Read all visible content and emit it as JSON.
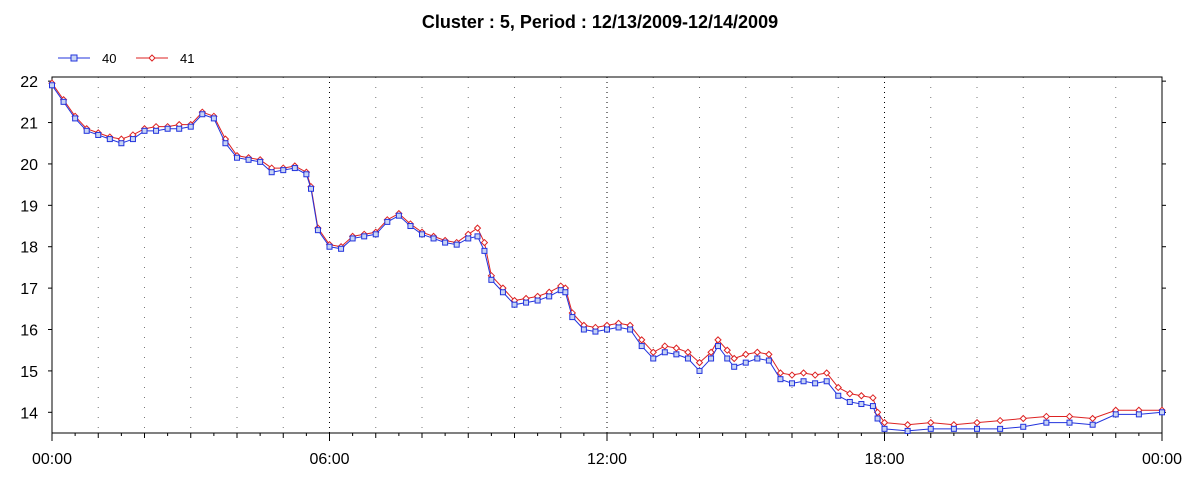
{
  "chart_data": {
    "type": "line",
    "title": "Cluster : 5, Period : 12/13/2009-12/14/2009",
    "xlabel": "",
    "ylabel": "",
    "x_ticks": [
      "00:00",
      "06:00",
      "12:00",
      "18:00",
      "00:00"
    ],
    "y_ticks": [
      14,
      15,
      16,
      17,
      18,
      19,
      20,
      21,
      22
    ],
    "xlim_hours": [
      0,
      24
    ],
    "ylim": [
      13.5,
      22.1
    ],
    "grid": "vertical dotted",
    "legend_position": "top-left",
    "series": [
      {
        "name": "40",
        "color": "#2233dd",
        "marker": "square",
        "points": [
          [
            0.0,
            21.9
          ],
          [
            0.25,
            21.5
          ],
          [
            0.5,
            21.1
          ],
          [
            0.75,
            20.8
          ],
          [
            1.0,
            20.7
          ],
          [
            1.25,
            20.6
          ],
          [
            1.5,
            20.5
          ],
          [
            1.75,
            20.6
          ],
          [
            2.0,
            20.8
          ],
          [
            2.25,
            20.8
          ],
          [
            2.5,
            20.85
          ],
          [
            2.75,
            20.85
          ],
          [
            3.0,
            20.9
          ],
          [
            3.25,
            21.2
          ],
          [
            3.5,
            21.1
          ],
          [
            3.75,
            20.5
          ],
          [
            4.0,
            20.15
          ],
          [
            4.25,
            20.1
          ],
          [
            4.5,
            20.05
          ],
          [
            4.75,
            19.8
          ],
          [
            5.0,
            19.85
          ],
          [
            5.25,
            19.9
          ],
          [
            5.5,
            19.75
          ],
          [
            5.6,
            19.4
          ],
          [
            5.75,
            18.4
          ],
          [
            6.0,
            18.0
          ],
          [
            6.25,
            17.95
          ],
          [
            6.5,
            18.2
          ],
          [
            6.75,
            18.25
          ],
          [
            7.0,
            18.3
          ],
          [
            7.25,
            18.6
          ],
          [
            7.5,
            18.75
          ],
          [
            7.75,
            18.5
          ],
          [
            8.0,
            18.3
          ],
          [
            8.25,
            18.2
          ],
          [
            8.5,
            18.1
          ],
          [
            8.75,
            18.05
          ],
          [
            9.0,
            18.2
          ],
          [
            9.2,
            18.25
          ],
          [
            9.35,
            17.9
          ],
          [
            9.5,
            17.2
          ],
          [
            9.75,
            16.9
          ],
          [
            10.0,
            16.6
          ],
          [
            10.25,
            16.65
          ],
          [
            10.5,
            16.7
          ],
          [
            10.75,
            16.8
          ],
          [
            11.0,
            16.95
          ],
          [
            11.1,
            16.9
          ],
          [
            11.25,
            16.3
          ],
          [
            11.5,
            16.0
          ],
          [
            11.75,
            15.95
          ],
          [
            12.0,
            16.0
          ],
          [
            12.25,
            16.05
          ],
          [
            12.5,
            16.0
          ],
          [
            12.75,
            15.6
          ],
          [
            13.0,
            15.3
          ],
          [
            13.25,
            15.45
          ],
          [
            13.5,
            15.4
          ],
          [
            13.75,
            15.3
          ],
          [
            14.0,
            15.0
          ],
          [
            14.25,
            15.3
          ],
          [
            14.4,
            15.6
          ],
          [
            14.6,
            15.3
          ],
          [
            14.75,
            15.1
          ],
          [
            15.0,
            15.2
          ],
          [
            15.25,
            15.3
          ],
          [
            15.5,
            15.25
          ],
          [
            15.75,
            14.8
          ],
          [
            16.0,
            14.7
          ],
          [
            16.25,
            14.75
          ],
          [
            16.5,
            14.7
          ],
          [
            16.75,
            14.75
          ],
          [
            17.0,
            14.4
          ],
          [
            17.25,
            14.25
          ],
          [
            17.5,
            14.2
          ],
          [
            17.75,
            14.15
          ],
          [
            17.85,
            13.85
          ],
          [
            18.0,
            13.6
          ],
          [
            18.5,
            13.55
          ],
          [
            19.0,
            13.6
          ],
          [
            19.5,
            13.6
          ],
          [
            20.0,
            13.6
          ],
          [
            20.5,
            13.6
          ],
          [
            21.0,
            13.65
          ],
          [
            21.5,
            13.75
          ],
          [
            22.0,
            13.75
          ],
          [
            22.5,
            13.7
          ],
          [
            23.0,
            13.95
          ],
          [
            23.5,
            13.95
          ],
          [
            24.0,
            14.0
          ]
        ]
      },
      {
        "name": "41",
        "color": "#dd2222",
        "marker": "diamond",
        "points": [
          [
            0.0,
            21.95
          ],
          [
            0.25,
            21.55
          ],
          [
            0.5,
            21.15
          ],
          [
            0.75,
            20.85
          ],
          [
            1.0,
            20.75
          ],
          [
            1.25,
            20.65
          ],
          [
            1.5,
            20.6
          ],
          [
            1.75,
            20.7
          ],
          [
            2.0,
            20.85
          ],
          [
            2.25,
            20.9
          ],
          [
            2.5,
            20.9
          ],
          [
            2.75,
            20.95
          ],
          [
            3.0,
            20.95
          ],
          [
            3.25,
            21.25
          ],
          [
            3.5,
            21.15
          ],
          [
            3.75,
            20.6
          ],
          [
            4.0,
            20.2
          ],
          [
            4.25,
            20.15
          ],
          [
            4.5,
            20.1
          ],
          [
            4.75,
            19.9
          ],
          [
            5.0,
            19.9
          ],
          [
            5.25,
            19.95
          ],
          [
            5.5,
            19.8
          ],
          [
            5.6,
            19.45
          ],
          [
            5.75,
            18.45
          ],
          [
            6.0,
            18.05
          ],
          [
            6.25,
            18.0
          ],
          [
            6.5,
            18.25
          ],
          [
            6.75,
            18.3
          ],
          [
            7.0,
            18.35
          ],
          [
            7.25,
            18.65
          ],
          [
            7.5,
            18.8
          ],
          [
            7.75,
            18.55
          ],
          [
            8.0,
            18.35
          ],
          [
            8.25,
            18.25
          ],
          [
            8.5,
            18.15
          ],
          [
            8.75,
            18.1
          ],
          [
            9.0,
            18.3
          ],
          [
            9.2,
            18.45
          ],
          [
            9.35,
            18.1
          ],
          [
            9.5,
            17.3
          ],
          [
            9.75,
            17.0
          ],
          [
            10.0,
            16.7
          ],
          [
            10.25,
            16.75
          ],
          [
            10.5,
            16.8
          ],
          [
            10.75,
            16.9
          ],
          [
            11.0,
            17.05
          ],
          [
            11.1,
            17.0
          ],
          [
            11.25,
            16.4
          ],
          [
            11.5,
            16.1
          ],
          [
            11.75,
            16.05
          ],
          [
            12.0,
            16.1
          ],
          [
            12.25,
            16.15
          ],
          [
            12.5,
            16.1
          ],
          [
            12.75,
            15.75
          ],
          [
            13.0,
            15.45
          ],
          [
            13.25,
            15.6
          ],
          [
            13.5,
            15.55
          ],
          [
            13.75,
            15.45
          ],
          [
            14.0,
            15.2
          ],
          [
            14.25,
            15.45
          ],
          [
            14.4,
            15.75
          ],
          [
            14.6,
            15.5
          ],
          [
            14.75,
            15.3
          ],
          [
            15.0,
            15.4
          ],
          [
            15.25,
            15.45
          ],
          [
            15.5,
            15.4
          ],
          [
            15.75,
            14.95
          ],
          [
            16.0,
            14.9
          ],
          [
            16.25,
            14.95
          ],
          [
            16.5,
            14.9
          ],
          [
            16.75,
            14.95
          ],
          [
            17.0,
            14.6
          ],
          [
            17.25,
            14.45
          ],
          [
            17.5,
            14.4
          ],
          [
            17.75,
            14.35
          ],
          [
            17.85,
            14.0
          ],
          [
            18.0,
            13.75
          ],
          [
            18.5,
            13.7
          ],
          [
            19.0,
            13.75
          ],
          [
            19.5,
            13.7
          ],
          [
            20.0,
            13.75
          ],
          [
            20.5,
            13.8
          ],
          [
            21.0,
            13.85
          ],
          [
            21.5,
            13.9
          ],
          [
            22.0,
            13.9
          ],
          [
            22.5,
            13.85
          ],
          [
            23.0,
            14.05
          ],
          [
            23.5,
            14.05
          ],
          [
            24.0,
            14.05
          ]
        ]
      }
    ]
  }
}
